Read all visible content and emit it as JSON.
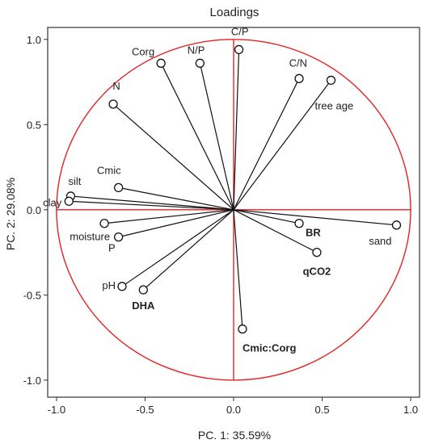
{
  "chart_data": {
    "type": "scatter",
    "title": "Loadings",
    "xlabel": "PC. 1: 35.59%",
    "ylabel": "PC. 2: 29.08%",
    "xlim": [
      -1.05,
      1.05
    ],
    "ylim": [
      -1.1,
      1.07
    ],
    "xticks": [
      "-1.0",
      "-0.5",
      "0.0",
      "0.5",
      "1.0"
    ],
    "yticks": [
      "-1.0",
      "-0.5",
      "0.0",
      "0.5",
      "1.0"
    ],
    "circle_radius": 1.0,
    "colors": {
      "circle": "#e52222",
      "axes": "#e52222",
      "vector": "#111111",
      "frame": "#333333"
    },
    "points": [
      {
        "name": "C/P",
        "x": 0.03,
        "y": 0.94,
        "bold": false,
        "anchor": "end",
        "dx": 12,
        "dy": -18
      },
      {
        "name": "Corg",
        "x": -0.41,
        "y": 0.86,
        "bold": false,
        "anchor": "end",
        "dx": -8,
        "dy": -10
      },
      {
        "name": "N/P",
        "x": -0.19,
        "y": 0.86,
        "bold": false,
        "anchor": "end",
        "dx": 6,
        "dy": -12
      },
      {
        "name": "C/N",
        "x": 0.37,
        "y": 0.77,
        "bold": false,
        "anchor": "end",
        "dx": 10,
        "dy": -15
      },
      {
        "name": "tree age",
        "x": 0.55,
        "y": 0.76,
        "bold": false,
        "anchor": "start",
        "dx": -20,
        "dy": 36
      },
      {
        "name": "N",
        "x": -0.68,
        "y": 0.62,
        "bold": false,
        "anchor": "middle",
        "dx": 4,
        "dy": -18
      },
      {
        "name": "Cmic",
        "x": -0.65,
        "y": 0.13,
        "bold": false,
        "anchor": "end",
        "dx": 3,
        "dy": -17
      },
      {
        "name": "silt",
        "x": -0.92,
        "y": 0.08,
        "bold": false,
        "anchor": "middle",
        "dx": 5,
        "dy": -14
      },
      {
        "name": "clay",
        "x": -0.93,
        "y": 0.05,
        "bold": false,
        "anchor": "end",
        "dx": -9,
        "dy": 6
      },
      {
        "name": "moisture",
        "x": -0.73,
        "y": -0.08,
        "bold": false,
        "anchor": "end",
        "dx": 7,
        "dy": 21
      },
      {
        "name": "P",
        "x": -0.65,
        "y": -0.16,
        "bold": false,
        "anchor": "end",
        "dx": -4,
        "dy": 18
      },
      {
        "name": "pH",
        "x": -0.63,
        "y": -0.45,
        "bold": false,
        "anchor": "end",
        "dx": -8,
        "dy": 3
      },
      {
        "name": "DHA",
        "x": -0.51,
        "y": -0.47,
        "bold": true,
        "anchor": "middle",
        "dx": 0,
        "dy": 24
      },
      {
        "name": "BR",
        "x": 0.37,
        "y": -0.08,
        "bold": true,
        "anchor": "start",
        "dx": 8,
        "dy": 16
      },
      {
        "name": "sand",
        "x": 0.92,
        "y": -0.09,
        "bold": false,
        "anchor": "end",
        "dx": -6,
        "dy": 24
      },
      {
        "name": "qCO2",
        "x": 0.47,
        "y": -0.25,
        "bold": true,
        "anchor": "middle",
        "dx": 0,
        "dy": 28
      },
      {
        "name": "Cmic:Corg",
        "x": 0.05,
        "y": -0.7,
        "bold": true,
        "anchor": "start",
        "dx": 0,
        "dy": 28
      }
    ]
  }
}
